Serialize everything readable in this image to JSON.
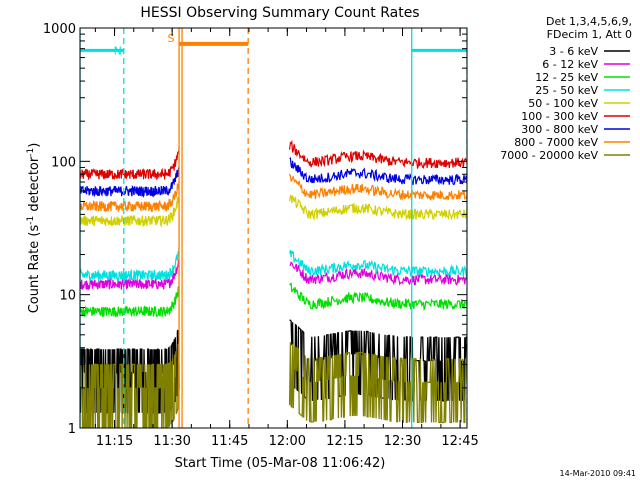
{
  "chart_data": {
    "type": "line",
    "title": "HESSI Observing Summary Count Rates",
    "xlabel": "Start Time (05-Mar-08 11:06:42)",
    "ylabel_main": "Count Rate (s",
    "ylabel_sup1": "-1",
    "ylabel_mid": " detector",
    "ylabel_sup2": "-1",
    "ylabel_end": ")",
    "y_scale": "log",
    "ylim": [
      1,
      1000
    ],
    "xlim_minutes": [
      11.1,
      12.78
    ],
    "x_ticks": [
      {
        "label": "11:15",
        "value": 11.25
      },
      {
        "label": "11:30",
        "value": 11.5
      },
      {
        "label": "11:45",
        "value": 11.75
      },
      {
        "label": "12:00",
        "value": 12.0
      },
      {
        "label": "12:15",
        "value": 12.25
      },
      {
        "label": "12:30",
        "value": 12.5
      },
      {
        "label": "12:45",
        "value": 12.75
      }
    ],
    "y_ticks": [
      {
        "label": "1",
        "value": 1
      },
      {
        "label": "10",
        "value": 10
      },
      {
        "label": "100",
        "value": 100
      },
      {
        "label": "1000",
        "value": 1000
      }
    ],
    "legend": {
      "header1": "Det 1,3,4,5,6,9,",
      "header2": "FDecim 1, Att 0",
      "placement": "top-right-outside"
    },
    "series": [
      {
        "name": "3 - 6 keV",
        "color": "#000000",
        "pre": 2.6,
        "post": 3.2
      },
      {
        "name": "6 - 12 keV",
        "color": "#e000e0",
        "pre": 12,
        "post": 13
      },
      {
        "name": "12 - 25 keV",
        "color": "#00e000",
        "pre": 7.5,
        "post": 8.5
      },
      {
        "name": "25 - 50 keV",
        "color": "#00e0e0",
        "pre": 14,
        "post": 15
      },
      {
        "name": "50 - 100 keV",
        "color": "#d0d000",
        "pre": 36,
        "post": 40
      },
      {
        "name": "100 - 300 keV",
        "color": "#e00000",
        "pre": 80,
        "post": 98
      },
      {
        "name": "300 - 800 keV",
        "color": "#0000e0",
        "pre": 60,
        "post": 73
      },
      {
        "name": "800 - 7000 keV",
        "color": "#ff8000",
        "pre": 46,
        "post": 56
      },
      {
        "name": "7000 - 20000 keV",
        "color": "#808000",
        "pre": 2.0,
        "post": 2.2
      }
    ],
    "gap": {
      "start": 11.53,
      "end": 12.01
    },
    "saa_bar": {
      "start": 11.53,
      "end": 11.83,
      "value": 760,
      "label": "S",
      "color": "#ff8000"
    },
    "night_bars": [
      {
        "start": 11.1,
        "end": 11.29,
        "value": 680
      },
      {
        "start": 12.54,
        "end": 12.78,
        "value": 680
      }
    ],
    "night_label": "N",
    "night_color": "#00e0e0",
    "markers": [
      {
        "x": 11.1,
        "color": "#00e0e0",
        "style": "solid"
      },
      {
        "x": 11.29,
        "color": "#00e0e0",
        "style": "dashed"
      },
      {
        "x": 11.53,
        "color": "#ff8000",
        "style": "solid"
      },
      {
        "x": 11.83,
        "color": "#ff8000",
        "style": "dashed"
      },
      {
        "x": 12.54,
        "color": "#00e0e0",
        "style": "solid"
      },
      {
        "x": 12.78,
        "color": "#00e0e0",
        "style": "dashed"
      }
    ]
  },
  "footer": {
    "timestamp": "14-Mar-2010 09:41"
  }
}
